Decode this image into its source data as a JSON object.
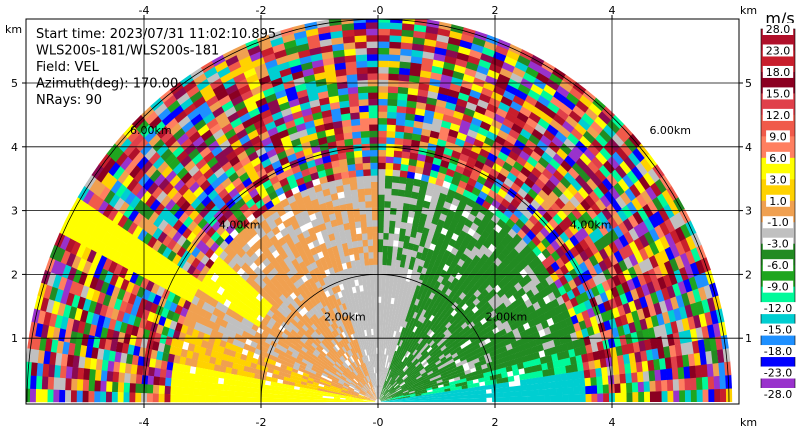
{
  "chart_data": {
    "type": "heatmap",
    "subtype": "radar-rhi-sector",
    "info_lines": [
      "Start time: 2023/07/31 11:02:10.895",
      "WLS200s-181/WLS200s-181",
      "Field: VEL",
      "Azimuth(deg): 170.00",
      "NRays: 90"
    ],
    "xlim": [
      -6.3,
      6.3
    ],
    "ylim": [
      0,
      6.0
    ],
    "x_ticks": [
      -4,
      -2,
      0,
      2,
      4
    ],
    "x_tick_labels": [
      "-4",
      "-2",
      "-0",
      "2",
      "4"
    ],
    "y_ticks": [
      1,
      2,
      3,
      4,
      5
    ],
    "y_tick_labels": [
      "1",
      "2",
      "3",
      "4",
      "5"
    ],
    "axis_unit_label": "km",
    "range_rings_km": [
      2,
      4,
      6
    ],
    "range_ring_labels": [
      "2.00km",
      "4.00km",
      "6.00km"
    ],
    "max_range_km": 6.0,
    "grid": true,
    "colorbar": {
      "unit": "m/s",
      "bounds": [
        28.0,
        23.0,
        18.0,
        15.0,
        12.0,
        9.0,
        6.0,
        3.0,
        1.0,
        -1.0,
        -3.0,
        -6.0,
        -9.0,
        -12.0,
        -15.0,
        -18.0,
        -23.0,
        -28.0
      ],
      "labels": [
        "28.0",
        "23.0",
        "18.0",
        "15.0",
        "12.0",
        "9.0",
        "6.0",
        "3.0",
        "1.0",
        "-1.0",
        "-3.0",
        "-6.0",
        "-9.0",
        "-12.0",
        "-15.0",
        "-18.0",
        "-23.0",
        "-28.0"
      ],
      "colors": [
        "#b0102a",
        "#c81e2c",
        "#8b0021",
        "#e0404a",
        "#f05a4a",
        "#ff7f60",
        "#ffff00",
        "#ffd200",
        "#f0a050",
        "#c0c0c0",
        "#228b22",
        "#1fa51f",
        "#00fa9a",
        "#00ced1",
        "#1e90ff",
        "#0000ff",
        "#9932cc",
        "#8b0a50"
      ]
    }
  }
}
